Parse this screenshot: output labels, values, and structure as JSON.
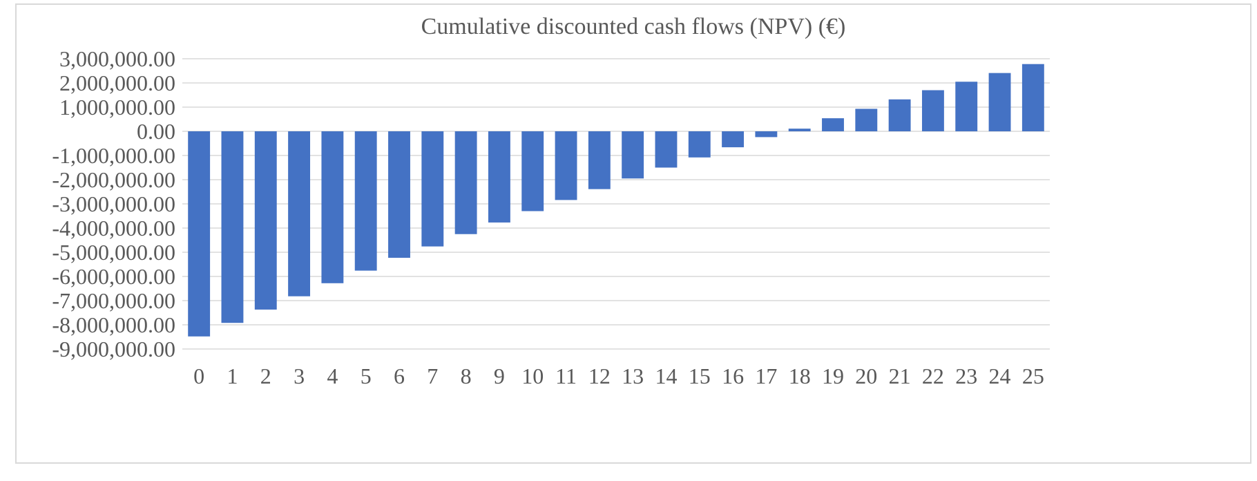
{
  "chart_data": {
    "type": "bar",
    "title": "Cumulative discounted cash flows (NPV) (€)",
    "xlabel": "",
    "ylabel": "",
    "categories": [
      "0",
      "1",
      "2",
      "3",
      "4",
      "5",
      "6",
      "7",
      "8",
      "9",
      "10",
      "11",
      "12",
      "13",
      "14",
      "15",
      "16",
      "17",
      "18",
      "19",
      "20",
      "21",
      "22",
      "23",
      "24",
      "25"
    ],
    "values": [
      -8480000,
      -7920000,
      -7370000,
      -6820000,
      -6280000,
      -5760000,
      -5230000,
      -4760000,
      -4250000,
      -3770000,
      -3300000,
      -2840000,
      -2390000,
      -1950000,
      -1500000,
      -1080000,
      -660000,
      -240000,
      110000,
      540000,
      930000,
      1320000,
      1700000,
      2050000,
      2410000,
      2780000
    ],
    "ylim": [
      -9000000,
      3000000
    ],
    "y_ticks": [
      3000000,
      2000000,
      1000000,
      0,
      -1000000,
      -2000000,
      -3000000,
      -4000000,
      -5000000,
      -6000000,
      -7000000,
      -8000000,
      -9000000
    ],
    "y_tick_labels": [
      "3,000,000.00",
      "2,000,000.00",
      "1,000,000.00",
      "0.00",
      "-1,000,000.00",
      "-2,000,000.00",
      "-3,000,000.00",
      "-4,000,000.00",
      "-5,000,000.00",
      "-6,000,000.00",
      "-7,000,000.00",
      "-8,000,000.00",
      "-9,000,000.00"
    ],
    "grid": true,
    "legend": "none",
    "bar_color": "#4472C4",
    "grid_color": "#d9d9d9",
    "text_color": "#595959"
  }
}
